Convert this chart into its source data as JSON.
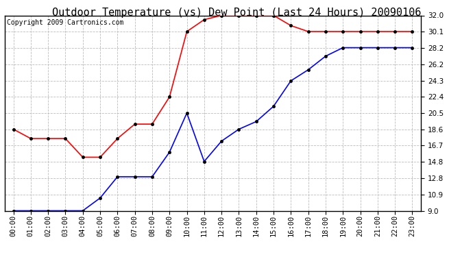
{
  "title": "Outdoor Temperature (vs) Dew Point (Last 24 Hours) 20090106",
  "copyright": "Copyright 2009 Cartronics.com",
  "x_labels": [
    "00:00",
    "01:00",
    "02:00",
    "03:00",
    "04:00",
    "05:00",
    "06:00",
    "07:00",
    "08:00",
    "09:00",
    "10:00",
    "11:00",
    "12:00",
    "13:00",
    "14:00",
    "15:00",
    "16:00",
    "17:00",
    "18:00",
    "19:00",
    "20:00",
    "21:00",
    "22:00",
    "23:00"
  ],
  "temp_data": [
    18.6,
    17.5,
    17.5,
    17.5,
    15.3,
    15.3,
    17.5,
    19.2,
    19.2,
    22.4,
    30.1,
    31.5,
    32.0,
    32.0,
    32.0,
    32.0,
    30.8,
    30.1,
    30.1,
    30.1,
    30.1,
    30.1,
    30.1,
    30.1
  ],
  "dew_data": [
    9.0,
    9.0,
    9.0,
    9.0,
    9.0,
    10.5,
    13.0,
    13.0,
    13.0,
    15.9,
    20.5,
    14.8,
    17.2,
    18.6,
    19.5,
    21.3,
    24.3,
    25.6,
    27.2,
    28.2,
    28.2,
    28.2,
    28.2,
    28.2
  ],
  "y_ticks": [
    9.0,
    10.9,
    12.8,
    14.8,
    16.7,
    18.6,
    20.5,
    22.4,
    24.3,
    26.2,
    28.2,
    30.1,
    32.0
  ],
  "y_min": 9.0,
  "y_max": 32.0,
  "temp_color": "#ff0000",
  "dew_color": "#0000ff",
  "grid_color": "#bbbbbb",
  "background_color": "#ffffff",
  "title_fontsize": 11,
  "copyright_fontsize": 7,
  "tick_labelsize": 7.5,
  "marker_size": 3
}
